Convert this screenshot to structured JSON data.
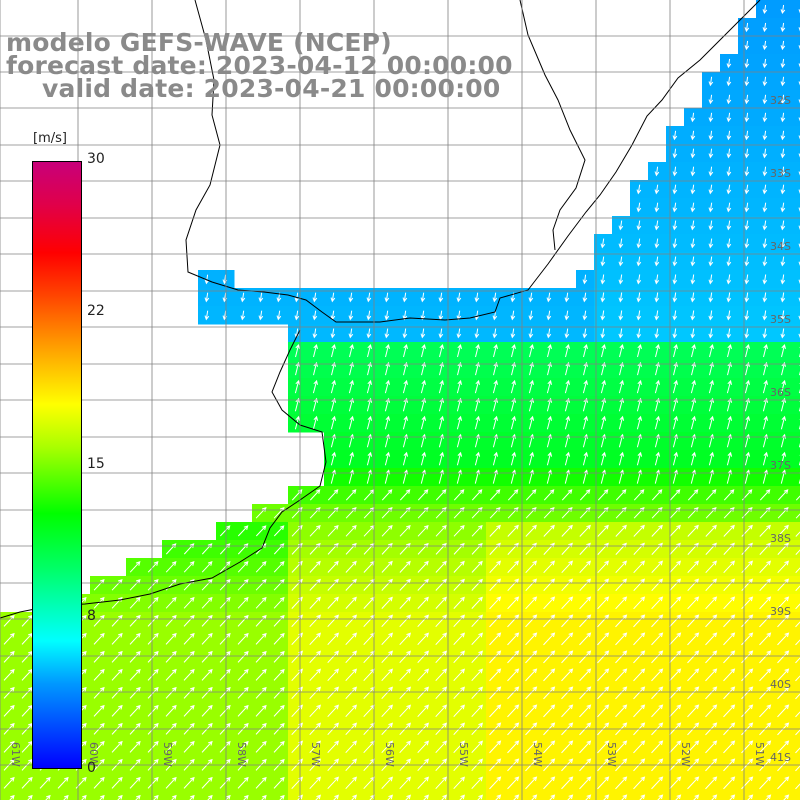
{
  "title": {
    "line1": "modelo GEFS-WAVE (NCEP)",
    "line2": "forecast date: 2023-04-12 00:00:00",
    "line3": "valid date: 2023-04-21 00:00:00"
  },
  "colorbar": {
    "unit": "[m/s]",
    "ticks": [
      "30",
      "22",
      "15",
      "8",
      "0"
    ],
    "colors": [
      "#0000ff",
      "#0099ff",
      "#00ffff",
      "#00ff00",
      "#ffff00",
      "#ff9900",
      "#ff0000",
      "#c8007a"
    ]
  },
  "lat_labels": [
    "32S",
    "33S",
    "34S",
    "35S",
    "36S",
    "37S",
    "38S",
    "39S",
    "40S",
    "41S"
  ],
  "lon_labels": [
    "61W",
    "60W",
    "59W",
    "58W",
    "57W",
    "56W",
    "55W",
    "54W",
    "53W",
    "52W",
    "51W"
  ],
  "colors": {
    "land": "#ffffff",
    "coast": "#000000",
    "grid": "#808080",
    "arrow": "#ffffff",
    "title_text": "#8a8a8a"
  }
}
